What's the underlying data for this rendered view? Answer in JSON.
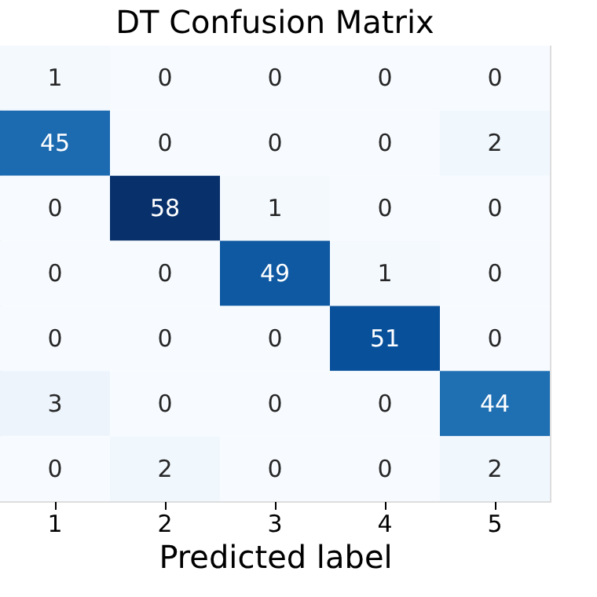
{
  "chart_data": {
    "type": "heatmap",
    "title": "DT Confusion Matrix",
    "xlabel": "Predicted label",
    "categories": [
      "1",
      "2",
      "3",
      "4",
      "5"
    ],
    "y_categories": [
      null,
      null,
      null,
      null,
      null,
      null,
      null
    ],
    "cells": [
      [
        1,
        0,
        0,
        0,
        0
      ],
      [
        45,
        0,
        0,
        0,
        2
      ],
      [
        0,
        58,
        1,
        0,
        0
      ],
      [
        0,
        0,
        49,
        1,
        0
      ],
      [
        0,
        0,
        0,
        51,
        0
      ],
      [
        3,
        0,
        0,
        0,
        44
      ],
      [
        0,
        2,
        0,
        0,
        2
      ]
    ],
    "data_labels": true,
    "tick_labels": "x"
  }
}
